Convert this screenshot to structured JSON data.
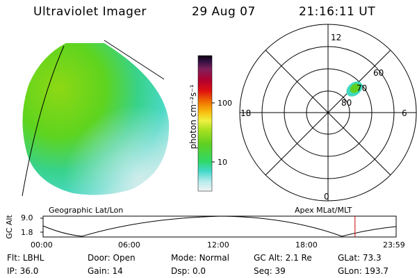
{
  "header": {
    "instrument": "Ultraviolet Imager",
    "date": "29 Aug 07",
    "time": "21:16:11 UT"
  },
  "colorbar": {
    "label": "photon cm⁻²s⁻¹",
    "ticks": [
      "100",
      "10"
    ]
  },
  "polar_plot": {
    "mlt_labels": {
      "top": "12",
      "right": "6",
      "bottom": "0",
      "left": "18"
    },
    "mlat_labels": [
      "60",
      "70",
      "80"
    ]
  },
  "timeline": {
    "left_title": "Geographic Lat/Lon",
    "right_title": "Apex MLat/MLT",
    "ylabel": "GC Alt",
    "yticks": [
      "9.0",
      "1.8"
    ],
    "xticks": [
      "00:00",
      "06:00",
      "12:00",
      "18:00",
      "23:59"
    ],
    "marker_time_fraction": 0.8835,
    "colors": {
      "marker": "#cc0000"
    }
  },
  "info": {
    "row1": [
      {
        "label": "Flt:",
        "value": "LBHL"
      },
      {
        "label": "Door:",
        "value": "Open"
      },
      {
        "label": "Mode:",
        "value": "Normal"
      },
      {
        "label": "GC Alt:",
        "value": "2.1 Re"
      },
      {
        "label": "GLat:",
        "value": "73.3"
      }
    ],
    "row2": [
      {
        "label": "IP:",
        "value": "36.0"
      },
      {
        "label": "Gain:",
        "value": "14"
      },
      {
        "label": "Dsp:",
        "value": "0.0"
      },
      {
        "label": "Seq:",
        "value": "39"
      },
      {
        "label": "GLon:",
        "value": "193.7"
      }
    ]
  }
}
